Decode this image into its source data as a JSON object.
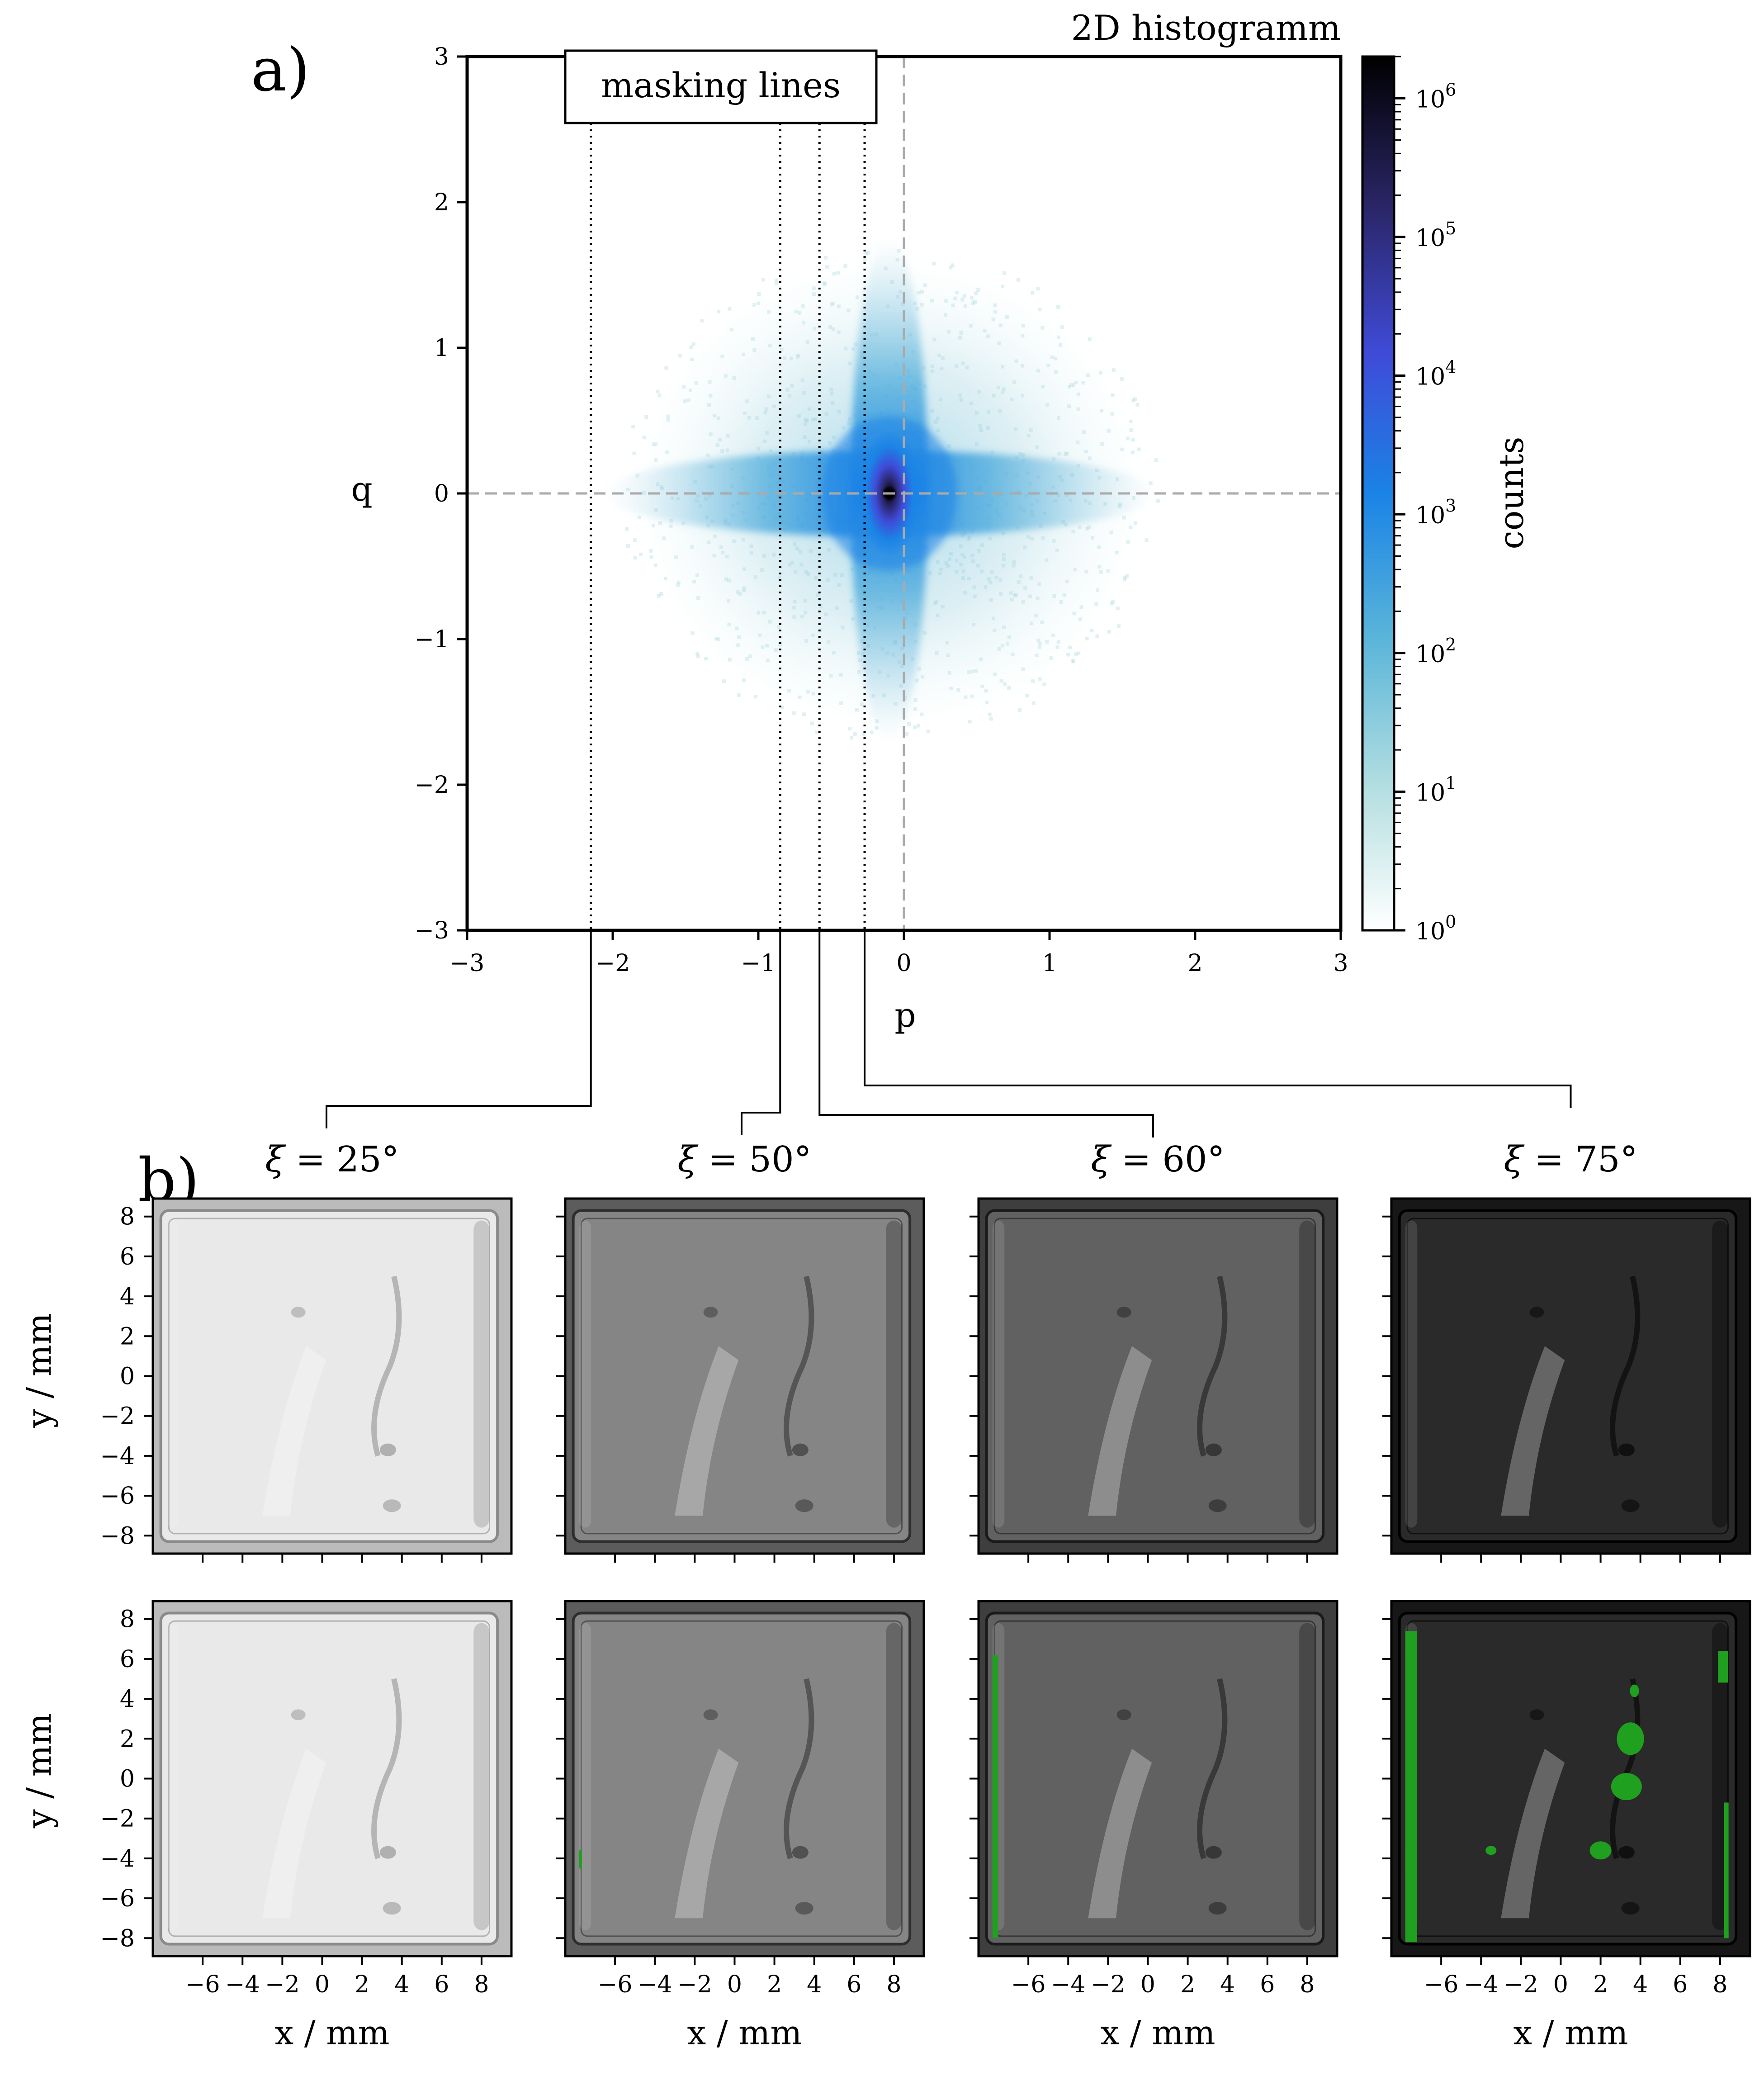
{
  "panel_a": {
    "letter": "a)",
    "title": "2D histogramm",
    "masking_label": "masking lines",
    "xlabel": "p",
    "ylabel": "q",
    "colorbar_label": "counts"
  },
  "panel_b": {
    "letter": "b)",
    "xlabel": "x / mm",
    "ylabel": "y / mm"
  },
  "chart_data": [
    {
      "type": "heatmap",
      "title": "2D histogramm",
      "xlabel": "p",
      "ylabel": "q",
      "xlim": [
        -3,
        3
      ],
      "ylim": [
        -3,
        3
      ],
      "xticks": [
        "−3",
        "−2",
        "−1",
        "0",
        "1",
        "2",
        "3"
      ],
      "yticks": [
        "−3",
        "−2",
        "−1",
        "0",
        "1",
        "2",
        "3"
      ],
      "colorbar": {
        "label": "counts",
        "scale": "log",
        "range": [
          1,
          2000000
        ],
        "ticks": [
          {
            "base": "10",
            "exp": "0",
            "value": 1
          },
          {
            "base": "10",
            "exp": "1",
            "value": 10
          },
          {
            "base": "10",
            "exp": "2",
            "value": 100
          },
          {
            "base": "10",
            "exp": "3",
            "value": 1000
          },
          {
            "base": "10",
            "exp": "4",
            "value": 10000
          },
          {
            "base": "10",
            "exp": "5",
            "value": 100000
          },
          {
            "base": "10",
            "exp": "6",
            "value": 1000000
          }
        ],
        "colors": [
          "#ffffff",
          "#b5dfe1",
          "#5cb6d9",
          "#1a83e6",
          "#3f4bd8",
          "#2a2566",
          "#000000"
        ]
      },
      "center": [
        -0.1,
        0.0
      ],
      "reference_lines": {
        "x": 0,
        "y": 0
      },
      "masking_lines_p": [
        -2.15,
        -0.85,
        -0.58,
        -0.27
      ],
      "masking_line_angles": [
        "25",
        "50",
        "60",
        "75"
      ]
    },
    {
      "type": "image-grid",
      "xlabel": "x / mm",
      "ylabel": "y / mm",
      "xlim": [
        -8.5,
        9.5
      ],
      "ylim": [
        -8.9,
        8.9
      ],
      "xticks": [
        "−6",
        "−4",
        "−2",
        "0",
        "2",
        "4",
        "6",
        "8"
      ],
      "yticks": [
        "8",
        "6",
        "4",
        "2",
        "0",
        "−2",
        "−4",
        "−6",
        "−8"
      ],
      "columns": [
        {
          "xi": "25",
          "background": "#bbbbbb",
          "surface": "#e9e9e9",
          "dark": "#8a8a8a",
          "masked_fraction": 0.0
        },
        {
          "xi": "50",
          "background": "#5c5c5c",
          "surface": "#858585",
          "dark": "#2e2e2e",
          "masked_fraction": 0.003
        },
        {
          "xi": "60",
          "background": "#3e3e3e",
          "surface": "#616161",
          "dark": "#1a1a1a",
          "masked_fraction": 0.01
        },
        {
          "xi": "75",
          "background": "#171717",
          "surface": "#2a2a2a",
          "dark": "#000000",
          "masked_fraction": 0.05
        }
      ],
      "rows": [
        "unmasked",
        "masked"
      ],
      "mask_color": "#1fa01f"
    }
  ]
}
